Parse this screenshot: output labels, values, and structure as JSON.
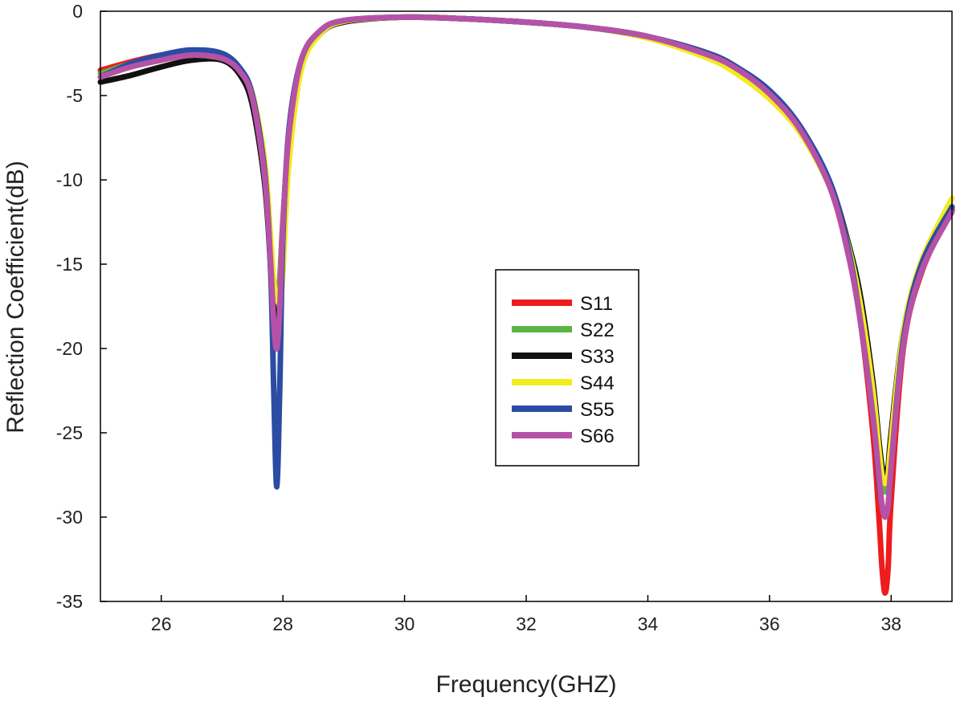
{
  "chart_data": {
    "type": "line",
    "xlabel": "Frequency(GHZ)",
    "ylabel": "Reflection Coefficient(dB)",
    "xlim": [
      25,
      39
    ],
    "ylim": [
      -35,
      0
    ],
    "xticks": [
      26,
      28,
      30,
      32,
      34,
      36,
      38
    ],
    "yticks": [
      0,
      -5,
      -10,
      -15,
      -20,
      -25,
      -30,
      -35
    ],
    "xtick_labels": [
      "26",
      "28",
      "30",
      "32",
      "34",
      "36",
      "38"
    ],
    "ytick_labels": [
      "0",
      "-5",
      "-10",
      "-15",
      "-20",
      "-25",
      "-30",
      "-35"
    ],
    "grid": false,
    "legend_position": "center-right",
    "x": [
      25,
      25.5,
      26,
      26.5,
      27,
      27.3,
      27.5,
      27.7,
      27.8,
      27.85,
      27.9,
      27.95,
      28,
      28.1,
      28.3,
      28.6,
      29,
      30,
      31,
      32,
      33,
      34,
      35,
      35.5,
      36,
      36.5,
      37,
      37.3,
      37.5,
      37.7,
      37.8,
      37.85,
      37.9,
      37.95,
      38,
      38.2,
      38.5,
      39
    ],
    "series": [
      {
        "name": "S11",
        "color": "#ee1c1c",
        "values": [
          -3.5,
          -3.0,
          -2.6,
          -2.4,
          -2.7,
          -3.6,
          -5.2,
          -9.5,
          -14.5,
          -17.0,
          -17.5,
          -15.8,
          -12.5,
          -7.5,
          -3.0,
          -1.3,
          -0.6,
          -0.35,
          -0.45,
          -0.65,
          -0.95,
          -1.5,
          -2.6,
          -3.6,
          -5.0,
          -7.0,
          -10.5,
          -14.5,
          -18.5,
          -25.0,
          -30.0,
          -33.0,
          -34.5,
          -33.0,
          -29.0,
          -20.0,
          -15.5,
          -11.6
        ]
      },
      {
        "name": "S22",
        "color": "#5ab543",
        "values": [
          -3.7,
          -3.1,
          -2.7,
          -2.45,
          -2.75,
          -3.7,
          -5.4,
          -9.8,
          -14.8,
          -17.3,
          -17.8,
          -16.0,
          -12.7,
          -7.6,
          -3.0,
          -1.3,
          -0.6,
          -0.35,
          -0.45,
          -0.65,
          -0.95,
          -1.5,
          -2.5,
          -3.4,
          -4.8,
          -6.9,
          -10.2,
          -14.0,
          -17.8,
          -23.0,
          -26.5,
          -28.0,
          -28.5,
          -28.0,
          -26.0,
          -19.0,
          -15.0,
          -11.7
        ]
      },
      {
        "name": "S33",
        "color": "#111111",
        "values": [
          -4.2,
          -3.8,
          -3.3,
          -2.9,
          -2.9,
          -3.8,
          -5.6,
          -10.2,
          -15.2,
          -17.6,
          -18.2,
          -17.5,
          -14.5,
          -8.5,
          -3.4,
          -1.4,
          -0.65,
          -0.35,
          -0.45,
          -0.65,
          -0.95,
          -1.5,
          -2.6,
          -3.5,
          -5.0,
          -7.0,
          -10.3,
          -13.8,
          -17.0,
          -22.0,
          -25.5,
          -27.0,
          -27.5,
          -27.0,
          -25.0,
          -19.0,
          -15.2,
          -11.8
        ]
      },
      {
        "name": "S44",
        "color": "#f2ec1e",
        "values": [
          -3.9,
          -3.3,
          -2.9,
          -2.6,
          -2.8,
          -3.5,
          -4.9,
          -8.8,
          -13.5,
          -16.0,
          -17.0,
          -17.2,
          -15.5,
          -9.0,
          -3.5,
          -1.4,
          -0.6,
          -0.35,
          -0.45,
          -0.65,
          -0.95,
          -1.6,
          -2.8,
          -3.8,
          -5.2,
          -7.2,
          -10.5,
          -14.0,
          -17.5,
          -22.5,
          -26.0,
          -27.5,
          -28.0,
          -27.5,
          -25.5,
          -19.0,
          -14.8,
          -11.1
        ]
      },
      {
        "name": "S55",
        "color": "#2c4ca3",
        "values": [
          -3.9,
          -3.1,
          -2.6,
          -2.3,
          -2.5,
          -3.4,
          -5.0,
          -9.5,
          -15.5,
          -22.5,
          -28.2,
          -22.0,
          -13.5,
          -7.0,
          -2.9,
          -1.2,
          -0.55,
          -0.35,
          -0.45,
          -0.65,
          -0.95,
          -1.5,
          -2.5,
          -3.4,
          -4.7,
          -6.8,
          -10.2,
          -14.2,
          -18.5,
          -24.0,
          -27.8,
          -29.3,
          -29.8,
          -29.3,
          -27.0,
          -19.5,
          -15.0,
          -11.6
        ]
      },
      {
        "name": "S66",
        "color": "#b552a8",
        "values": [
          -3.9,
          -3.3,
          -2.9,
          -2.6,
          -2.8,
          -3.6,
          -5.2,
          -9.8,
          -15.0,
          -18.5,
          -20.0,
          -17.5,
          -12.8,
          -7.3,
          -2.9,
          -1.2,
          -0.55,
          -0.35,
          -0.45,
          -0.65,
          -0.95,
          -1.5,
          -2.6,
          -3.5,
          -4.9,
          -7.0,
          -10.5,
          -14.5,
          -18.5,
          -24.0,
          -27.5,
          -29.3,
          -30.0,
          -29.3,
          -27.0,
          -19.8,
          -15.4,
          -11.9
        ]
      }
    ]
  }
}
